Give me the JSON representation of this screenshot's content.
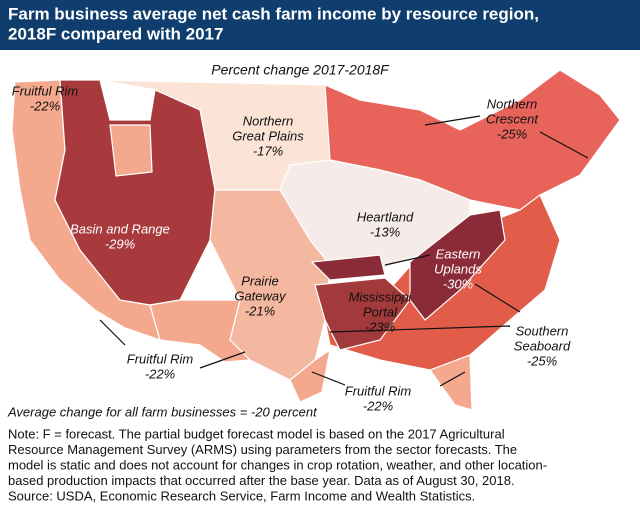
{
  "header": {
    "title_lines": [
      "Farm business average net cash farm income by resource region,",
      "2018F compared with 2017"
    ]
  },
  "map": {
    "subtitle": "Percent change 2017-2018F",
    "regions": [
      {
        "lines": [
          "Fruitful Rim"
        ],
        "change": "-22%"
      },
      {
        "lines": [
          "Northern",
          "Great Plains"
        ],
        "change": "-17%"
      },
      {
        "lines": [
          "Northern",
          "Crescent"
        ],
        "change": "-25%"
      },
      {
        "lines": [
          "Basin and Range"
        ],
        "change": "-29%"
      },
      {
        "lines": [
          "Heartland"
        ],
        "change": "-13%"
      },
      {
        "lines": [
          "Prairie",
          "Gateway"
        ],
        "change": "-21%"
      },
      {
        "lines": [
          "Eastern",
          "Uplands"
        ],
        "change": "-30%"
      },
      {
        "lines": [
          "Mississippi",
          "Portal"
        ],
        "change": "-23%"
      },
      {
        "lines": [
          "Southern",
          "Seaboard"
        ],
        "change": "-25%"
      },
      {
        "lines": [
          "Fruitful Rim"
        ],
        "change": "-22%"
      },
      {
        "lines": [
          "Fruitful Rim"
        ],
        "change": "-22%"
      }
    ],
    "average_note": "Average change for all farm businesses = -20 percent"
  },
  "notes": [
    "Note: F = forecast. The partial budget forecast model is based on the 2017 Agricultural",
    "Resource Management Survey (ARMS) using parameters from the sector forecasts. The",
    "model is static and does not account for changes in crop rotation, weather, and other location-",
    "based production impacts that occurred after the base year. Data as of August 30, 2018.",
    "Source: USDA, Economic Research Service, Farm Income and Wealth Statistics."
  ]
}
